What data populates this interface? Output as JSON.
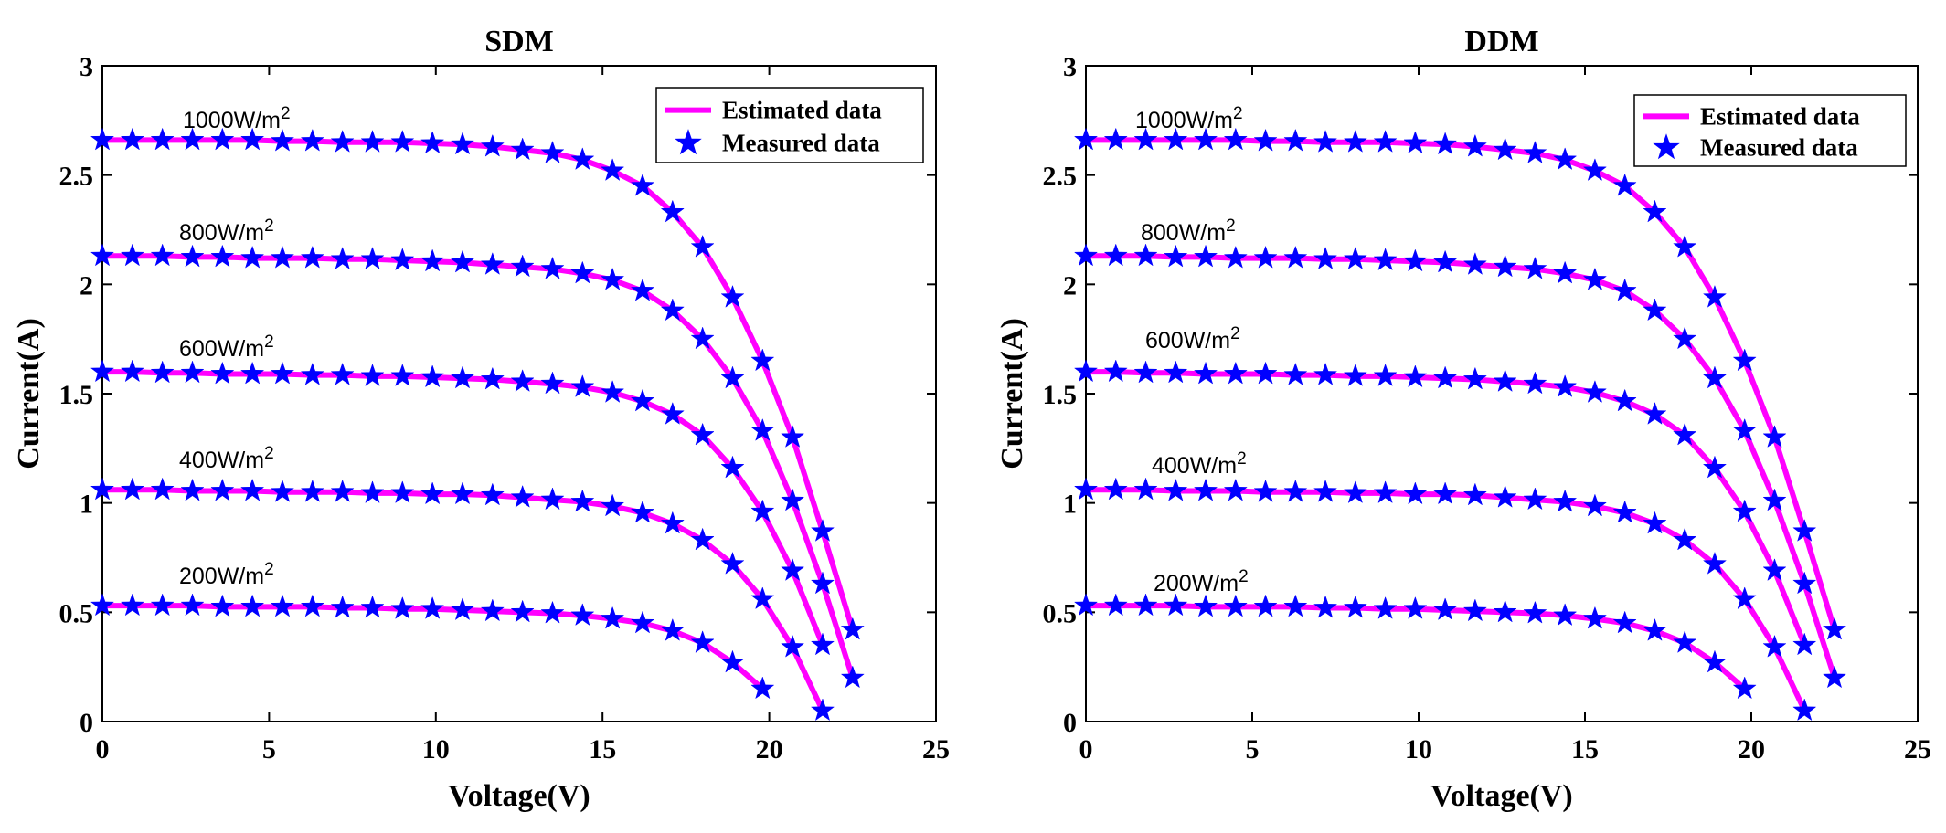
{
  "chart_data": [
    {
      "type": "line",
      "title": "SDM",
      "xlabel": "Voltage(V)",
      "ylabel": "Current(A)",
      "xlim": [
        0,
        25
      ],
      "ylim": [
        0,
        3
      ],
      "xticks": [
        "0",
        "5",
        "10",
        "15",
        "20",
        "25"
      ],
      "yticks": [
        "0",
        "0.5",
        "1",
        "1.5",
        "2",
        "2.5",
        "3"
      ],
      "grid": false,
      "legend": {
        "position": "top-right",
        "entries": [
          {
            "name": "Estimated data",
            "style": "line",
            "color": "#ff00ff"
          },
          {
            "name": "Measured data",
            "style": "star-marker",
            "color": "#0000ff"
          }
        ]
      },
      "series": [
        {
          "name": "1000W/m2",
          "label_base": "1000W/m",
          "label_sup": "2",
          "x": [
            0,
            0.9,
            1.8,
            2.7,
            3.6,
            4.5,
            5.4,
            6.3,
            7.2,
            8.1,
            9,
            9.9,
            10.8,
            11.7,
            12.6,
            13.5,
            14.4,
            15.3,
            16.2,
            17.1,
            18,
            18.9,
            19.8,
            20.7,
            21.6,
            22.5
          ],
          "y": [
            2.66,
            2.66,
            2.66,
            2.66,
            2.66,
            2.66,
            2.655,
            2.655,
            2.65,
            2.65,
            2.65,
            2.645,
            2.64,
            2.63,
            2.615,
            2.6,
            2.57,
            2.52,
            2.45,
            2.33,
            2.17,
            1.94,
            1.65,
            1.3,
            0.87,
            0.42
          ]
        },
        {
          "name": "800W/m2",
          "label_base": "800W/m",
          "label_sup": "2",
          "x": [
            0,
            0.9,
            1.8,
            2.7,
            3.6,
            4.5,
            5.4,
            6.3,
            7.2,
            8.1,
            9,
            9.9,
            10.8,
            11.7,
            12.6,
            13.5,
            14.4,
            15.3,
            16.2,
            17.1,
            18,
            18.9,
            19.8,
            20.7,
            21.6,
            22.5
          ],
          "y": [
            2.13,
            2.13,
            2.13,
            2.125,
            2.125,
            2.12,
            2.12,
            2.12,
            2.115,
            2.115,
            2.11,
            2.105,
            2.1,
            2.09,
            2.08,
            2.07,
            2.05,
            2.02,
            1.97,
            1.88,
            1.75,
            1.57,
            1.33,
            1.01,
            0.63,
            0.2
          ]
        },
        {
          "name": "600W/m2",
          "label_base": "600W/m",
          "label_sup": "2",
          "x": [
            0,
            0.9,
            1.8,
            2.7,
            3.6,
            4.5,
            5.4,
            6.3,
            7.2,
            8.1,
            9,
            9.9,
            10.8,
            11.7,
            12.6,
            13.5,
            14.4,
            15.3,
            16.2,
            17.1,
            18,
            18.9,
            19.8,
            20.7,
            21.6
          ],
          "y": [
            1.6,
            1.6,
            1.595,
            1.595,
            1.59,
            1.59,
            1.59,
            1.585,
            1.585,
            1.58,
            1.58,
            1.575,
            1.57,
            1.565,
            1.555,
            1.545,
            1.53,
            1.505,
            1.465,
            1.405,
            1.31,
            1.16,
            0.96,
            0.69,
            0.35
          ]
        },
        {
          "name": "400W/m2",
          "label_base": "400W/m",
          "label_sup": "2",
          "x": [
            0,
            0.9,
            1.8,
            2.7,
            3.6,
            4.5,
            5.4,
            6.3,
            7.2,
            8.1,
            9,
            9.9,
            10.8,
            11.7,
            12.6,
            13.5,
            14.4,
            15.3,
            16.2,
            17.1,
            18,
            18.9,
            19.8,
            20.7,
            21.6
          ],
          "y": [
            1.06,
            1.06,
            1.06,
            1.055,
            1.055,
            1.055,
            1.05,
            1.05,
            1.05,
            1.045,
            1.045,
            1.04,
            1.04,
            1.035,
            1.025,
            1.015,
            1.005,
            0.985,
            0.955,
            0.905,
            0.83,
            0.72,
            0.56,
            0.34,
            0.05
          ]
        },
        {
          "name": "200W/m2",
          "label_base": "200W/m",
          "label_sup": "2",
          "x": [
            0,
            0.9,
            1.8,
            2.7,
            3.6,
            4.5,
            5.4,
            6.3,
            7.2,
            8.1,
            9,
            9.9,
            10.8,
            11.7,
            12.6,
            13.5,
            14.4,
            15.3,
            16.2,
            17.1,
            18,
            18.9,
            19.8
          ],
          "y": [
            0.53,
            0.53,
            0.53,
            0.53,
            0.525,
            0.525,
            0.525,
            0.525,
            0.52,
            0.52,
            0.515,
            0.515,
            0.51,
            0.505,
            0.5,
            0.495,
            0.485,
            0.47,
            0.45,
            0.415,
            0.36,
            0.27,
            0.15
          ]
        }
      ]
    },
    {
      "type": "line",
      "title": "DDM",
      "xlabel": "Voltage(V)",
      "ylabel": "Current(A)",
      "xlim": [
        0,
        25
      ],
      "ylim": [
        0,
        3
      ],
      "xticks": [
        "0",
        "5",
        "10",
        "15",
        "20",
        "25"
      ],
      "yticks": [
        "0",
        "0.5",
        "1",
        "1.5",
        "2",
        "2.5",
        "3"
      ],
      "grid": false,
      "legend": {
        "position": "top-right",
        "entries": [
          {
            "name": "Estimated data",
            "style": "line",
            "color": "#ff00ff"
          },
          {
            "name": "Measured data",
            "style": "star-marker",
            "color": "#0000ff"
          }
        ]
      },
      "series": [
        {
          "name": "1000W/m2",
          "label_base": "1000W/m",
          "label_sup": "2",
          "x": [
            0,
            0.9,
            1.8,
            2.7,
            3.6,
            4.5,
            5.4,
            6.3,
            7.2,
            8.1,
            9,
            9.9,
            10.8,
            11.7,
            12.6,
            13.5,
            14.4,
            15.3,
            16.2,
            17.1,
            18,
            18.9,
            19.8,
            20.7,
            21.6,
            22.5
          ],
          "y": [
            2.66,
            2.66,
            2.66,
            2.66,
            2.66,
            2.66,
            2.655,
            2.655,
            2.65,
            2.65,
            2.65,
            2.645,
            2.64,
            2.63,
            2.615,
            2.6,
            2.57,
            2.52,
            2.45,
            2.33,
            2.17,
            1.94,
            1.65,
            1.3,
            0.87,
            0.42
          ]
        },
        {
          "name": "800W/m2",
          "label_base": "800W/m",
          "label_sup": "2",
          "x": [
            0,
            0.9,
            1.8,
            2.7,
            3.6,
            4.5,
            5.4,
            6.3,
            7.2,
            8.1,
            9,
            9.9,
            10.8,
            11.7,
            12.6,
            13.5,
            14.4,
            15.3,
            16.2,
            17.1,
            18,
            18.9,
            19.8,
            20.7,
            21.6,
            22.5
          ],
          "y": [
            2.13,
            2.13,
            2.13,
            2.125,
            2.125,
            2.12,
            2.12,
            2.12,
            2.115,
            2.115,
            2.11,
            2.105,
            2.1,
            2.09,
            2.08,
            2.07,
            2.05,
            2.02,
            1.97,
            1.88,
            1.75,
            1.57,
            1.33,
            1.01,
            0.63,
            0.2
          ]
        },
        {
          "name": "600W/m2",
          "label_base": "600W/m",
          "label_sup": "2",
          "x": [
            0,
            0.9,
            1.8,
            2.7,
            3.6,
            4.5,
            5.4,
            6.3,
            7.2,
            8.1,
            9,
            9.9,
            10.8,
            11.7,
            12.6,
            13.5,
            14.4,
            15.3,
            16.2,
            17.1,
            18,
            18.9,
            19.8,
            20.7,
            21.6
          ],
          "y": [
            1.6,
            1.6,
            1.595,
            1.595,
            1.59,
            1.59,
            1.59,
            1.585,
            1.585,
            1.58,
            1.58,
            1.575,
            1.57,
            1.565,
            1.555,
            1.545,
            1.53,
            1.505,
            1.465,
            1.405,
            1.31,
            1.16,
            0.96,
            0.69,
            0.35
          ]
        },
        {
          "name": "400W/m2",
          "label_base": "400W/m",
          "label_sup": "2",
          "x": [
            0,
            0.9,
            1.8,
            2.7,
            3.6,
            4.5,
            5.4,
            6.3,
            7.2,
            8.1,
            9,
            9.9,
            10.8,
            11.7,
            12.6,
            13.5,
            14.4,
            15.3,
            16.2,
            17.1,
            18,
            18.9,
            19.8,
            20.7,
            21.6
          ],
          "y": [
            1.06,
            1.06,
            1.06,
            1.055,
            1.055,
            1.055,
            1.05,
            1.05,
            1.05,
            1.045,
            1.045,
            1.04,
            1.04,
            1.035,
            1.025,
            1.015,
            1.005,
            0.985,
            0.955,
            0.905,
            0.83,
            0.72,
            0.56,
            0.34,
            0.05
          ]
        },
        {
          "name": "200W/m2",
          "label_base": "200W/m",
          "label_sup": "2",
          "x": [
            0,
            0.9,
            1.8,
            2.7,
            3.6,
            4.5,
            5.4,
            6.3,
            7.2,
            8.1,
            9,
            9.9,
            10.8,
            11.7,
            12.6,
            13.5,
            14.4,
            15.3,
            16.2,
            17.1,
            18,
            18.9,
            19.8
          ],
          "y": [
            0.53,
            0.53,
            0.53,
            0.53,
            0.525,
            0.525,
            0.525,
            0.525,
            0.52,
            0.52,
            0.515,
            0.515,
            0.51,
            0.505,
            0.5,
            0.495,
            0.485,
            0.47,
            0.45,
            0.415,
            0.36,
            0.27,
            0.15
          ]
        }
      ]
    }
  ]
}
